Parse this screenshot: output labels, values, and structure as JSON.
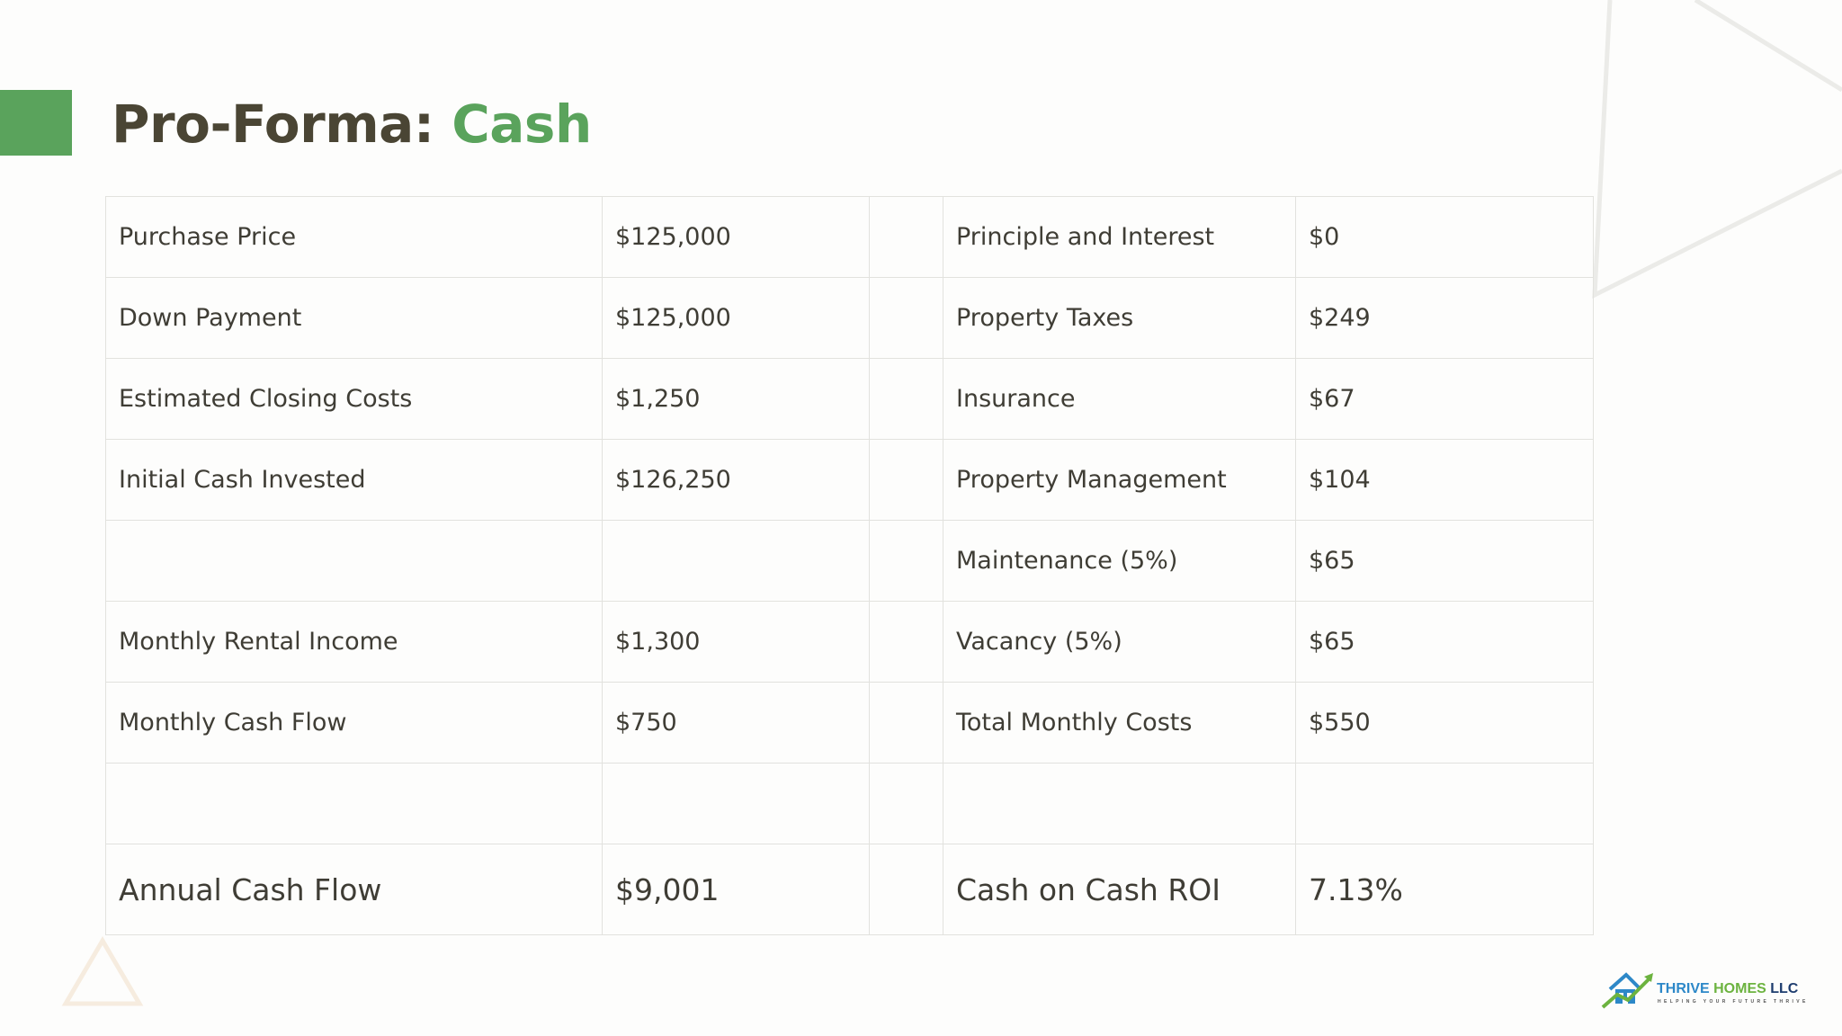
{
  "title": {
    "prefix": "Pro-Forma: ",
    "accent": "Cash"
  },
  "colors": {
    "accent_green": "#5aa35c",
    "title_dark": "#4a4534",
    "text": "#3f3d35",
    "grid_line": "#e2e2de"
  },
  "table": {
    "rows": [
      [
        "Purchase Price",
        "$125,000",
        "",
        "Principle and Interest",
        "$0"
      ],
      [
        "Down Payment",
        "$125,000",
        "",
        "Property Taxes",
        "$249"
      ],
      [
        "Estimated Closing Costs",
        "$1,250",
        "",
        "Insurance",
        "$67"
      ],
      [
        "Initial Cash Invested",
        "$126,250",
        "",
        "Property Management",
        "$104"
      ],
      [
        "",
        "",
        "",
        "Maintenance (5%)",
        "$65"
      ],
      [
        "Monthly Rental Income",
        "$1,300",
        "",
        "Vacancy (5%)",
        "$65"
      ],
      [
        "Monthly Cash Flow",
        "$750",
        "",
        "Total Monthly Costs",
        "$550"
      ],
      [
        "",
        "",
        "",
        "",
        ""
      ],
      [
        "Annual Cash Flow",
        "$9,001",
        "",
        "Cash on Cash ROI",
        "7.13%"
      ]
    ]
  },
  "logo": {
    "name_part1": "THRIVE ",
    "name_part2": "HOMES ",
    "name_part3": "LLC",
    "tagline": "HELPING YOUR FUTURE THRIVE",
    "icon": "house-arrow-icon"
  },
  "decorations": {
    "top_right": "triangle-outline",
    "bottom_left": "triangle-outline"
  }
}
